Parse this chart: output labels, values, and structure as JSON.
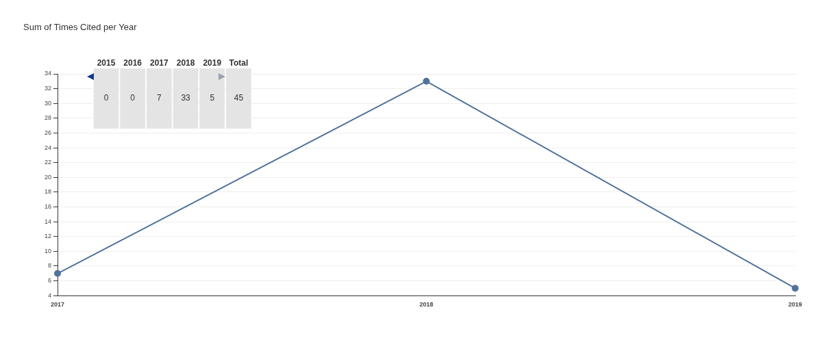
{
  "chart_data": [
    {
      "type": "line",
      "title": "Sum of Times Cited per Year",
      "categories": [
        "2017",
        "2018",
        "2019"
      ],
      "series": [
        {
          "color": "#50739a",
          "values": [
            7,
            33,
            5
          ]
        }
      ],
      "ylim": [
        4,
        34
      ],
      "yticks": [
        4,
        6,
        8,
        10,
        12,
        14,
        16,
        18,
        20,
        22,
        24,
        26,
        28,
        30,
        32,
        34
      ],
      "grid": "y",
      "marker": "circle",
      "line_style": "solid",
      "legend": false
    },
    {
      "type": "heatmap",
      "categories": [
        "2015",
        "2016",
        "2017",
        "2018",
        "2019",
        "Total"
      ],
      "y_categories": [
        null
      ],
      "cells": [
        [
          0,
          0,
          7,
          33,
          5,
          45
        ]
      ],
      "data_labels": true
    }
  ]
}
